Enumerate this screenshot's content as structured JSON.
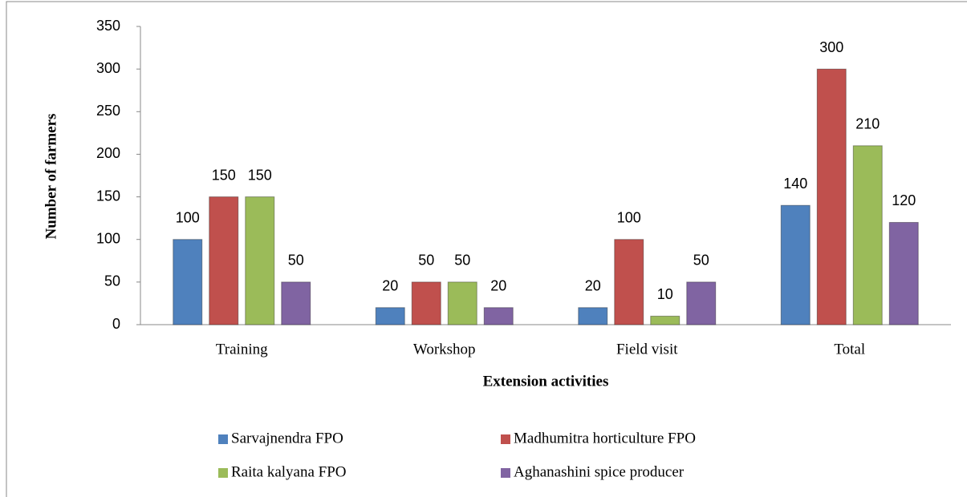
{
  "chart_data": {
    "type": "bar",
    "xlabel": "Extension activities",
    "ylabel": "Number of farmers",
    "categories": [
      "Training",
      "Workshop",
      "Field visit",
      "Total"
    ],
    "series": [
      {
        "name": "Sarvajnendra FPO",
        "color": "#4f81bd",
        "values": [
          100,
          20,
          20,
          140
        ]
      },
      {
        "name": "Madhumitra horticulture FPO",
        "color": "#c0504d",
        "values": [
          150,
          50,
          100,
          300
        ]
      },
      {
        "name": "Raita kalyana FPO",
        "color": "#9bbb59",
        "values": [
          150,
          50,
          10,
          210
        ]
      },
      {
        "name": "Aghanashini spice producer",
        "color": "#8064a2",
        "values": [
          50,
          20,
          50,
          120
        ]
      }
    ],
    "ylim": [
      0,
      350
    ],
    "yticks": [
      0,
      50,
      100,
      150,
      200,
      250,
      300,
      350
    ],
    "grid": false,
    "legend": "bottom"
  }
}
